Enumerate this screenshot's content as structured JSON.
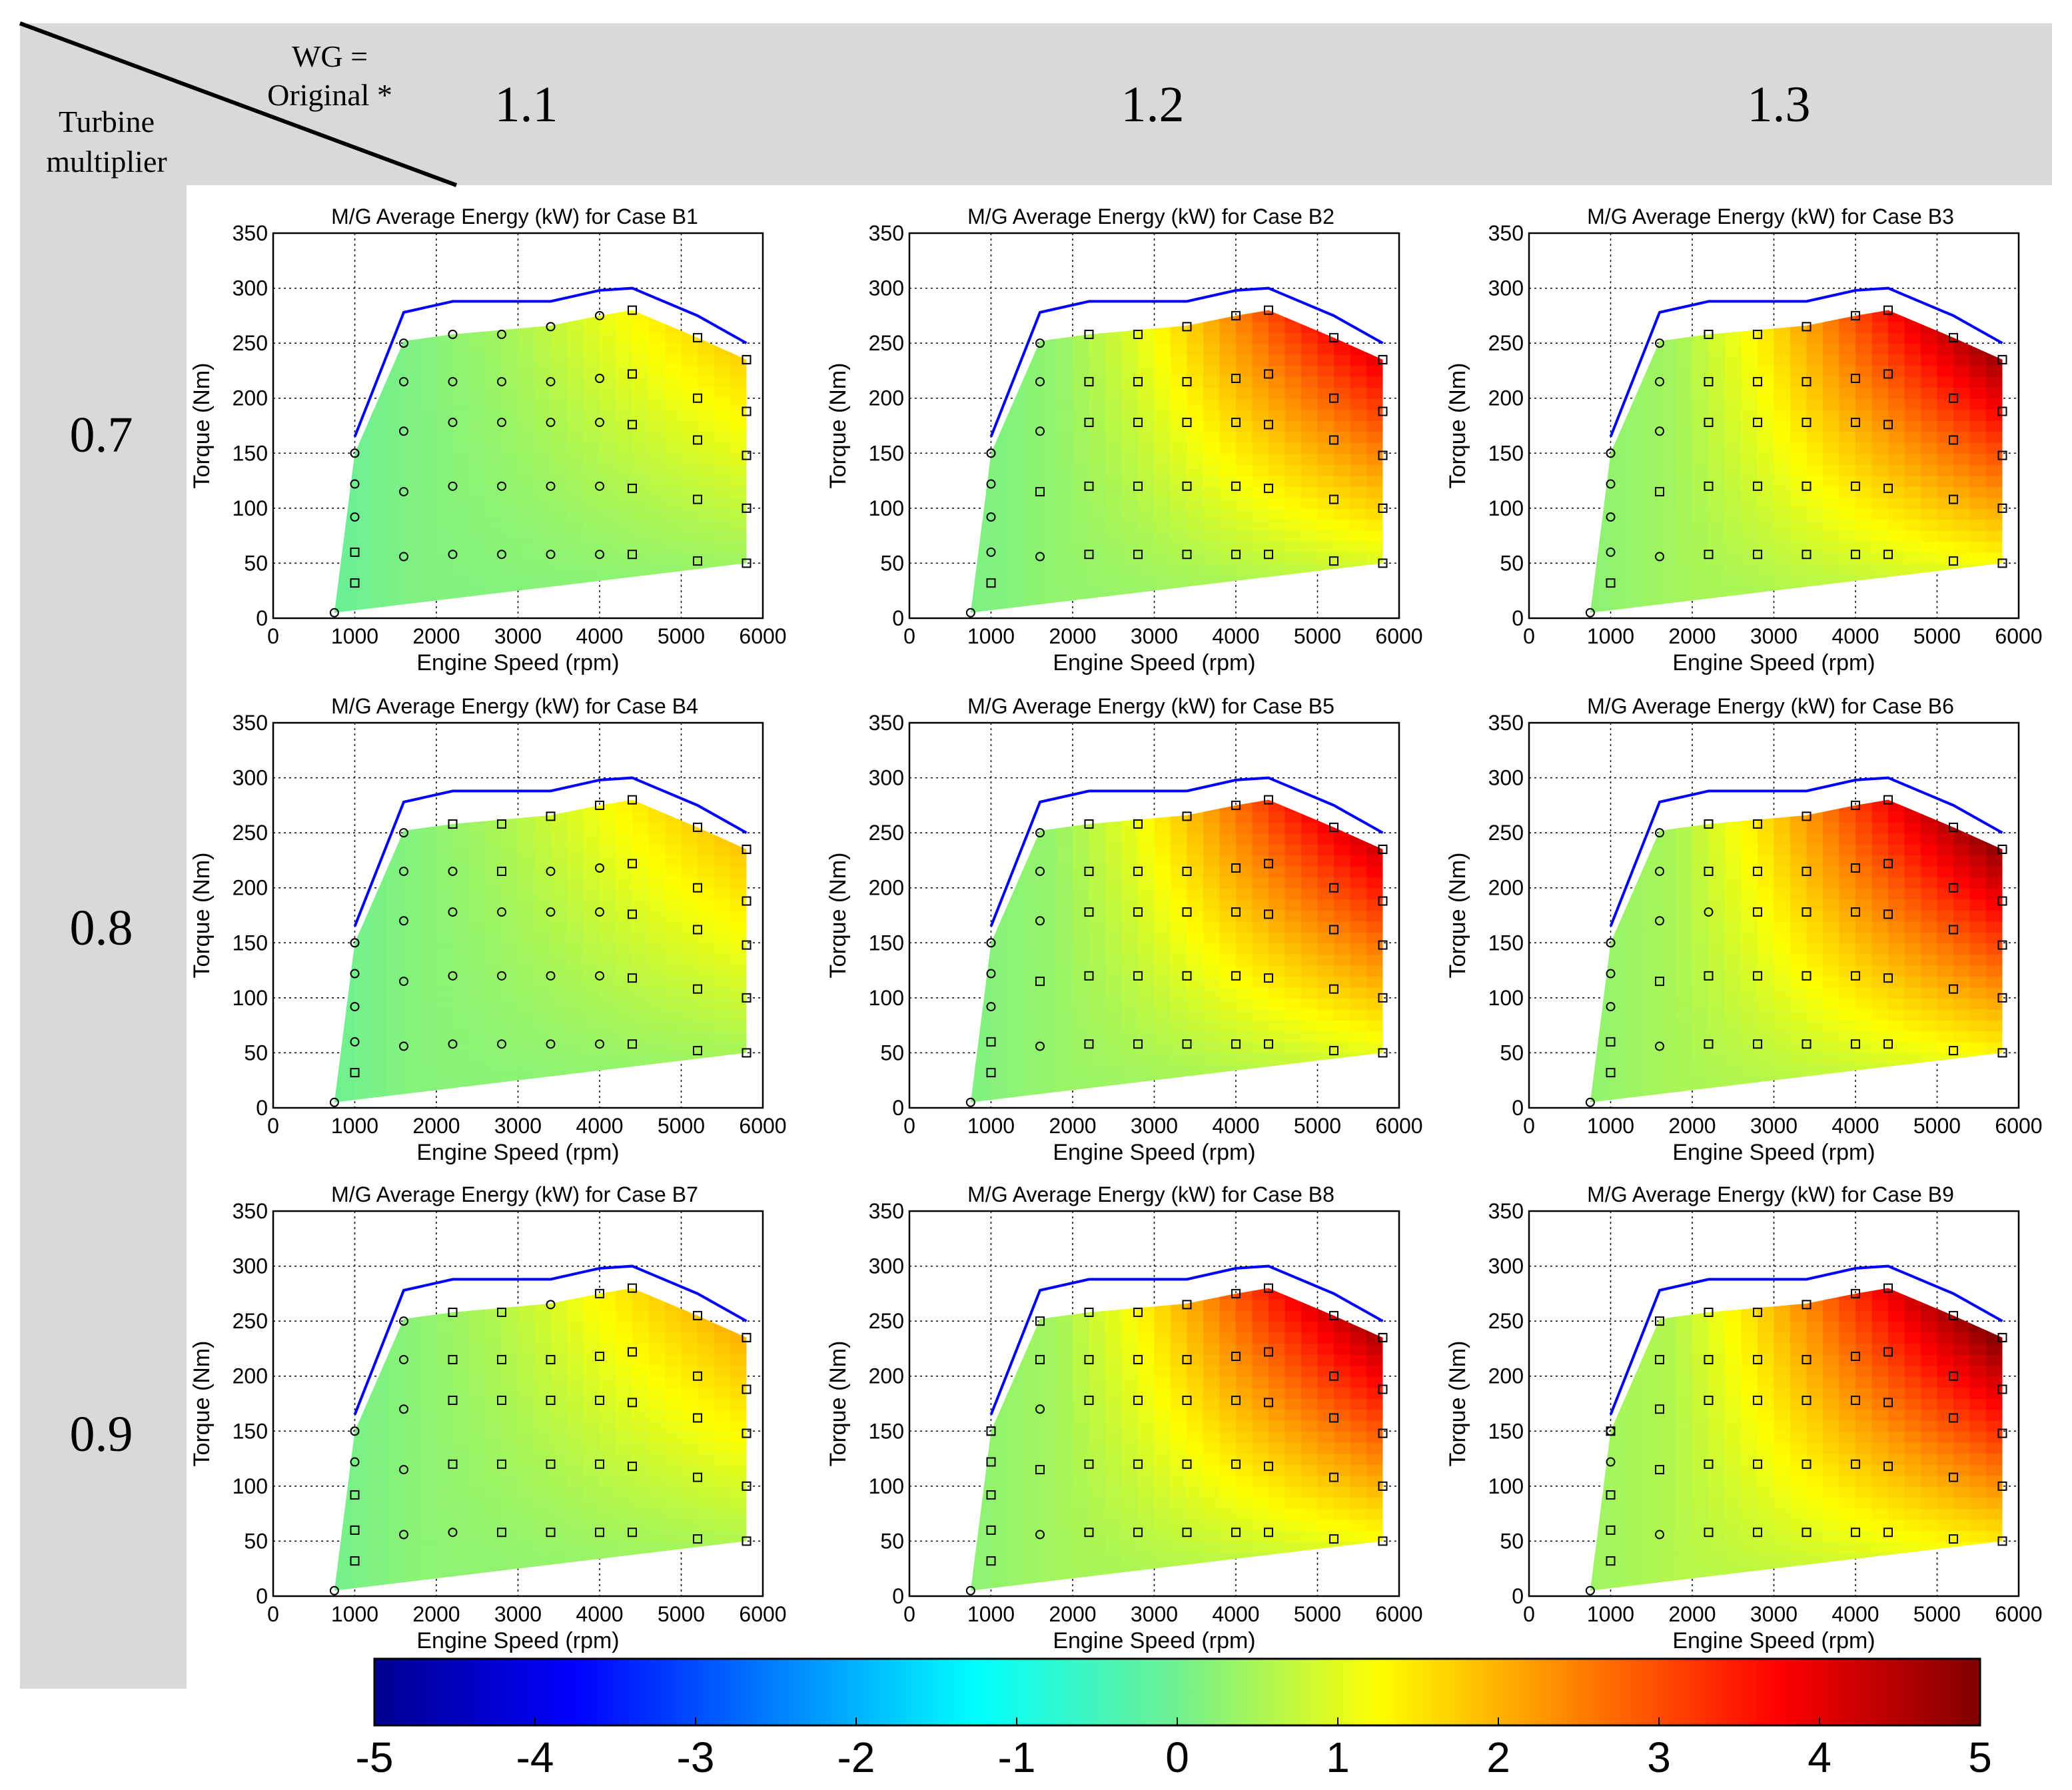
{
  "header": {
    "wg_label_line1": "WG =",
    "wg_label_line2": "Original *",
    "turbine_label_line1": "Turbine",
    "turbine_label_line2": "multiplier",
    "columns": [
      "1.1",
      "1.2",
      "1.3"
    ],
    "rows": [
      "0.7",
      "0.8",
      "0.9"
    ]
  },
  "colors": {
    "header_bg": "#d9d9d9",
    "boundary_line": "#0000ff",
    "marker": "#000000"
  },
  "chart_data": {
    "type": "heatmap",
    "panel_count": 9,
    "titles": [
      "M/G Average Energy (kW) for Case B1",
      "M/G Average Energy (kW) for Case B2",
      "M/G Average Energy (kW) for Case B3",
      "M/G Average Energy (kW) for Case B4",
      "M/G Average Energy (kW) for Case B5",
      "M/G Average Energy (kW) for Case B6",
      "M/G Average Energy (kW) for Case B7",
      "M/G Average Energy (kW) for Case B8",
      "M/G Average Energy (kW) for Case B9"
    ],
    "xlabel": "Engine Speed (rpm)",
    "ylabel": "Torque (Nm)",
    "xlim": [
      0,
      6000
    ],
    "ylim": [
      0,
      350
    ],
    "xticks": [
      "0",
      "1000",
      "2000",
      "3000",
      "4000",
      "5000",
      "6000"
    ],
    "yticks": [
      "0",
      "50",
      "100",
      "150",
      "200",
      "250",
      "300",
      "350"
    ],
    "max_torque_curve": {
      "x": [
        1000,
        1600,
        2200,
        2800,
        3400,
        4000,
        4400,
        5200,
        5800
      ],
      "y": [
        165,
        278,
        288,
        288,
        288,
        298,
        300,
        275,
        250
      ]
    },
    "outer_boundary": {
      "x": [
        750,
        1000,
        1600,
        2200,
        2800,
        3400,
        4000,
        4400,
        5200,
        5800,
        5800,
        750
      ],
      "y": [
        5,
        150,
        252,
        258,
        262,
        266,
        275,
        280,
        255,
        235,
        50,
        5
      ]
    },
    "operating_points": {
      "x": [
        750,
        1000,
        1000,
        1000,
        1000,
        1000,
        1000,
        1600,
        1600,
        1600,
        1600,
        1600,
        2200,
        2200,
        2200,
        2200,
        2200,
        2800,
        2800,
        2800,
        2800,
        2800,
        3400,
        3400,
        3400,
        3400,
        3400,
        4000,
        4000,
        4000,
        4000,
        4000,
        4400,
        4400,
        4400,
        4400,
        4400,
        5200,
        5200,
        5200,
        5200,
        5200,
        5800,
        5800,
        5800,
        5800,
        5800,
        5800
      ],
      "y": [
        5,
        32,
        60,
        92,
        122,
        150,
        150,
        56,
        115,
        170,
        215,
        250,
        58,
        120,
        178,
        215,
        258,
        58,
        120,
        178,
        215,
        258,
        58,
        120,
        178,
        215,
        265,
        58,
        120,
        178,
        218,
        275,
        58,
        118,
        176,
        222,
        280,
        52,
        108,
        162,
        200,
        255,
        50,
        100,
        148,
        188,
        235,
        235
      ]
    },
    "point_markers": [
      [
        "o",
        "s",
        "s",
        "o",
        "o",
        "o",
        "o",
        "o",
        "o",
        "o",
        "o",
        "o",
        "o",
        "o",
        "o",
        "o",
        "o",
        "o",
        "o",
        "o",
        "o",
        "o",
        "o",
        "o",
        "o",
        "o",
        "o",
        "o",
        "o",
        "o",
        "o",
        "o",
        "s",
        "s",
        "s",
        "s",
        "s",
        "s",
        "s",
        "s",
        "s",
        "s",
        "s",
        "s",
        "s",
        "s",
        "s",
        "s"
      ],
      [
        "o",
        "s",
        "o",
        "o",
        "o",
        "o",
        "o",
        "o",
        "s",
        "o",
        "o",
        "o",
        "s",
        "s",
        "s",
        "s",
        "s",
        "s",
        "s",
        "s",
        "s",
        "s",
        "s",
        "s",
        "s",
        "s",
        "s",
        "s",
        "s",
        "s",
        "s",
        "s",
        "s",
        "s",
        "s",
        "s",
        "s",
        "s",
        "s",
        "s",
        "s",
        "s",
        "s",
        "s",
        "s",
        "s",
        "s",
        "s"
      ],
      [
        "o",
        "s",
        "o",
        "o",
        "o",
        "o",
        "o",
        "o",
        "s",
        "o",
        "o",
        "o",
        "s",
        "s",
        "s",
        "s",
        "s",
        "s",
        "s",
        "s",
        "s",
        "s",
        "s",
        "s",
        "s",
        "s",
        "s",
        "s",
        "s",
        "s",
        "s",
        "s",
        "s",
        "s",
        "s",
        "s",
        "s",
        "s",
        "s",
        "s",
        "s",
        "s",
        "s",
        "s",
        "s",
        "s",
        "s",
        "s"
      ],
      [
        "o",
        "s",
        "o",
        "o",
        "o",
        "o",
        "o",
        "o",
        "o",
        "o",
        "o",
        "o",
        "o",
        "o",
        "o",
        "o",
        "s",
        "o",
        "o",
        "o",
        "s",
        "s",
        "o",
        "o",
        "o",
        "o",
        "s",
        "o",
        "o",
        "o",
        "o",
        "s",
        "s",
        "s",
        "s",
        "s",
        "s",
        "s",
        "s",
        "s",
        "s",
        "s",
        "s",
        "s",
        "s",
        "s",
        "s",
        "s"
      ],
      [
        "o",
        "s",
        "s",
        "o",
        "o",
        "o",
        "o",
        "o",
        "s",
        "o",
        "o",
        "o",
        "s",
        "s",
        "s",
        "s",
        "s",
        "s",
        "s",
        "s",
        "s",
        "s",
        "s",
        "s",
        "s",
        "s",
        "s",
        "s",
        "s",
        "s",
        "s",
        "s",
        "s",
        "s",
        "s",
        "s",
        "s",
        "s",
        "s",
        "s",
        "s",
        "s",
        "s",
        "s",
        "s",
        "s",
        "s",
        "s"
      ],
      [
        "o",
        "s",
        "s",
        "o",
        "o",
        "o",
        "o",
        "o",
        "s",
        "o",
        "o",
        "o",
        "s",
        "s",
        "o",
        "s",
        "s",
        "s",
        "s",
        "s",
        "s",
        "s",
        "s",
        "s",
        "s",
        "s",
        "s",
        "s",
        "s",
        "s",
        "s",
        "s",
        "s",
        "s",
        "s",
        "s",
        "s",
        "s",
        "s",
        "s",
        "s",
        "s",
        "s",
        "s",
        "s",
        "s",
        "s",
        "s"
      ],
      [
        "o",
        "s",
        "s",
        "s",
        "o",
        "o",
        "o",
        "o",
        "o",
        "o",
        "o",
        "o",
        "o",
        "s",
        "s",
        "s",
        "s",
        "s",
        "s",
        "s",
        "s",
        "s",
        "s",
        "s",
        "s",
        "s",
        "o",
        "s",
        "s",
        "s",
        "s",
        "s",
        "s",
        "s",
        "s",
        "s",
        "s",
        "s",
        "s",
        "s",
        "s",
        "s",
        "s",
        "s",
        "s",
        "s",
        "s",
        "s"
      ],
      [
        "o",
        "s",
        "s",
        "s",
        "s",
        "s",
        "s",
        "o",
        "s",
        "o",
        "s",
        "s",
        "s",
        "s",
        "s",
        "s",
        "s",
        "s",
        "s",
        "s",
        "s",
        "s",
        "s",
        "s",
        "s",
        "s",
        "s",
        "s",
        "s",
        "s",
        "s",
        "s",
        "s",
        "s",
        "s",
        "s",
        "s",
        "s",
        "s",
        "s",
        "s",
        "s",
        "s",
        "s",
        "s",
        "s",
        "s",
        "s"
      ],
      [
        "o",
        "s",
        "s",
        "s",
        "o",
        "o",
        "s",
        "o",
        "s",
        "s",
        "s",
        "s",
        "s",
        "s",
        "s",
        "s",
        "s",
        "s",
        "s",
        "s",
        "s",
        "s",
        "s",
        "s",
        "s",
        "s",
        "s",
        "s",
        "s",
        "s",
        "s",
        "s",
        "s",
        "s",
        "s",
        "s",
        "s",
        "s",
        "s",
        "s",
        "s",
        "s",
        "s",
        "s",
        "s",
        "s",
        "s",
        "s"
      ]
    ],
    "energy_field_params": [
      {
        "base": 0.15,
        "peak": 1.9,
        "speed_gain": 0.9
      },
      {
        "base": 0.3,
        "peak": 4.4,
        "speed_gain": 2.2
      },
      {
        "base": 0.45,
        "peak": 5.0,
        "speed_gain": 2.8
      },
      {
        "base": 0.2,
        "peak": 2.0,
        "speed_gain": 1.0
      },
      {
        "base": 0.35,
        "peak": 4.6,
        "speed_gain": 2.4
      },
      {
        "base": 0.5,
        "peak": 5.0,
        "speed_gain": 3.0
      },
      {
        "base": 0.25,
        "peak": 2.2,
        "speed_gain": 1.1
      },
      {
        "base": 0.45,
        "peak": 4.9,
        "speed_gain": 2.6
      },
      {
        "base": 0.6,
        "peak": 5.0,
        "speed_gain": 3.2
      }
    ],
    "colorbar": {
      "min": -5,
      "max": 5,
      "ticks": [
        "-5",
        "-4",
        "-3",
        "-2",
        "-1",
        "0",
        "1",
        "2",
        "3",
        "4",
        "5"
      ],
      "colormap": "jet"
    }
  }
}
